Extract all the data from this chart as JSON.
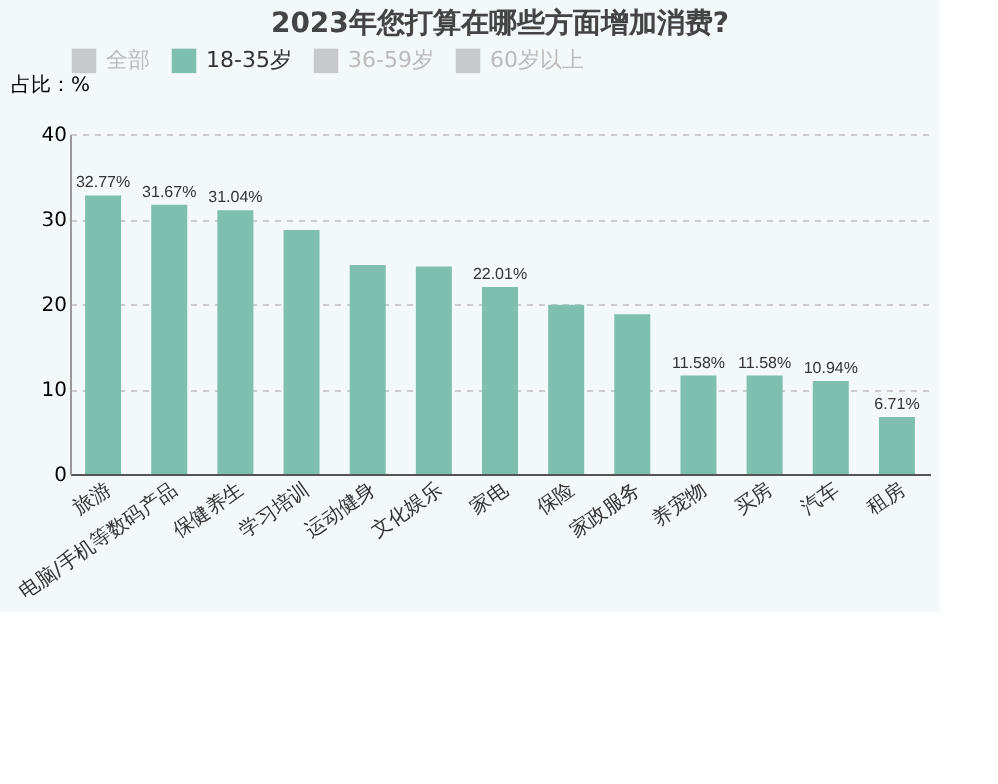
{
  "chart_data": {
    "type": "bar",
    "title": "2023年您打算在哪些方面增加消费?",
    "ylabel": "占比：%",
    "categories": [
      "旅游",
      "电脑/手机等数码产品",
      "保健养生",
      "学习培训",
      "运动健身",
      "文化娱乐",
      "家电",
      "保险",
      "家政服务",
      "养宠物",
      "买房",
      "汽车",
      "租房"
    ],
    "series": [
      {
        "name": "全部",
        "color": "#c8c9cc",
        "values": [
          null,
          null,
          null,
          null,
          null,
          null,
          null,
          null,
          null,
          null,
          null,
          null,
          null
        ]
      },
      {
        "name": "18-35岁",
        "color": "#7fbfb0",
        "values": [
          32.77,
          31.67,
          31.04,
          28.7,
          24.6,
          24.4,
          22.01,
          19.9,
          18.8,
          11.58,
          11.58,
          10.94,
          6.71
        ],
        "value_labels": [
          "32.77%",
          "31.67%",
          "31.04%",
          null,
          null,
          null,
          "22.01%",
          null,
          null,
          "11.58%",
          "11.58%",
          "10.94%",
          "6.71%"
        ]
      },
      {
        "name": "36-59岁",
        "color": "#c8c9cc",
        "values": [
          null,
          null,
          null,
          null,
          null,
          null,
          null,
          null,
          null,
          null,
          null,
          null,
          null
        ]
      },
      {
        "name": "60岁以上",
        "color": "#c8c9cc",
        "values": [
          null,
          null,
          null,
          null,
          null,
          null,
          null,
          null,
          null,
          null,
          null,
          null,
          null
        ]
      }
    ],
    "ylim": [
      0,
      40
    ],
    "yticks": [
      0,
      10,
      20,
      30,
      40
    ],
    "grid": "y",
    "legend": "top"
  }
}
